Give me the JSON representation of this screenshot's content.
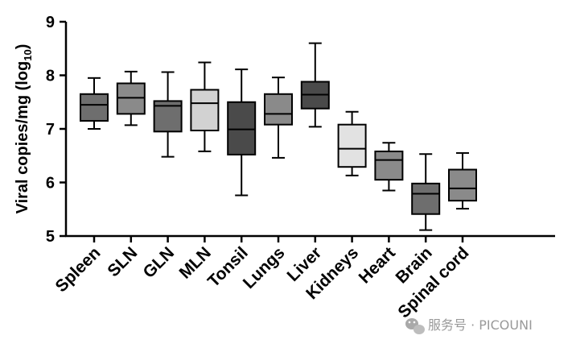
{
  "chart_data": {
    "type": "boxplot",
    "ylabel_main": "Viral copies/mg (log",
    "ylabel_sub": "10",
    "ylabel_close": ")",
    "ylim": [
      5,
      9
    ],
    "yticks": [
      5,
      6,
      7,
      8,
      9
    ],
    "grid": false,
    "legend": "none",
    "categories": [
      "Spleen",
      "SLN",
      "GLN",
      "MLN",
      "Tonsil",
      "Lungs",
      "Liver",
      "Kidneys",
      "Heart",
      "Brain",
      "Spinal cord"
    ],
    "boxes": [
      {
        "min": 7.0,
        "q1": 7.15,
        "median": 7.45,
        "q3": 7.65,
        "max": 7.95,
        "fill": "#6e6e6e"
      },
      {
        "min": 7.07,
        "q1": 7.28,
        "median": 7.58,
        "q3": 7.85,
        "max": 8.07,
        "fill": "#8a8a8a"
      },
      {
        "min": 6.48,
        "q1": 6.95,
        "median": 7.43,
        "q3": 7.52,
        "max": 8.06,
        "fill": "#6e6e6e"
      },
      {
        "min": 6.58,
        "q1": 6.97,
        "median": 7.48,
        "q3": 7.73,
        "max": 8.24,
        "fill": "#d2d2d2"
      },
      {
        "min": 5.76,
        "q1": 6.52,
        "median": 6.99,
        "q3": 7.5,
        "max": 8.11,
        "fill": "#4a4a4a"
      },
      {
        "min": 6.46,
        "q1": 7.08,
        "median": 7.28,
        "q3": 7.65,
        "max": 7.96,
        "fill": "#8a8a8a"
      },
      {
        "min": 7.04,
        "q1": 7.38,
        "median": 7.64,
        "q3": 7.88,
        "max": 8.6,
        "fill": "#4a4a4a"
      },
      {
        "min": 6.13,
        "q1": 6.29,
        "median": 6.63,
        "q3": 7.08,
        "max": 7.32,
        "fill": "#e2e2e2"
      },
      {
        "min": 5.85,
        "q1": 6.05,
        "median": 6.42,
        "q3": 6.58,
        "max": 6.74,
        "fill": "#8a8a8a"
      },
      {
        "min": 5.11,
        "q1": 5.41,
        "median": 5.79,
        "q3": 5.98,
        "max": 6.53,
        "fill": "#6e6e6e"
      },
      {
        "min": 5.51,
        "q1": 5.66,
        "median": 5.89,
        "q3": 6.24,
        "max": 6.55,
        "fill": "#8a8a8a"
      }
    ]
  },
  "watermark": {
    "text": "服务号 · PICOUNI",
    "icon": "wechat-icon"
  }
}
